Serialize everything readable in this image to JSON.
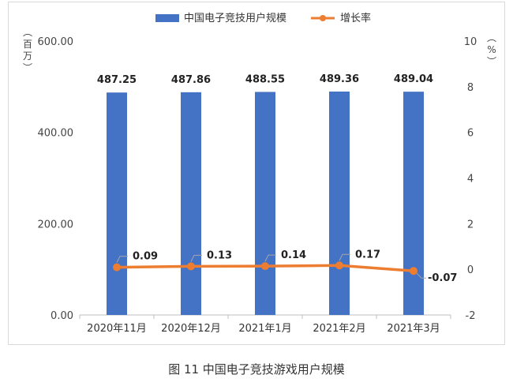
{
  "chart_data": {
    "type": "bar",
    "categories": [
      "2020年11月",
      "2020年12月",
      "2021年1月",
      "2021年2月",
      "2021年3月"
    ],
    "series": [
      {
        "name": "中国电子竞技用户规模",
        "type": "bar",
        "axis": "left",
        "values": [
          487.25,
          487.86,
          488.55,
          489.36,
          489.04
        ],
        "labels": [
          "487.25",
          "487.86",
          "488.55",
          "489.36",
          "489.04"
        ]
      },
      {
        "name": "增长率",
        "type": "line",
        "axis": "right",
        "values": [
          0.09,
          0.13,
          0.14,
          0.17,
          -0.07
        ],
        "labels": [
          "0.09",
          "0.13",
          "0.14",
          "0.17",
          "-0.07"
        ]
      }
    ],
    "y_left": {
      "unit": "百万",
      "range": [
        0,
        600
      ],
      "ticks": [
        "0.00",
        "200.00",
        "400.00",
        "600.00"
      ]
    },
    "y_right": {
      "unit": "%",
      "range": [
        -2,
        10
      ],
      "ticks": [
        "-2",
        "0",
        "2",
        "4",
        "6",
        "8",
        "10"
      ]
    },
    "legend_position": "top",
    "grid": false,
    "colors": {
      "bar": "#4472C4",
      "line": "#ED7D31"
    }
  },
  "caption": "图 11  中国电子竞技游戏用户规模"
}
